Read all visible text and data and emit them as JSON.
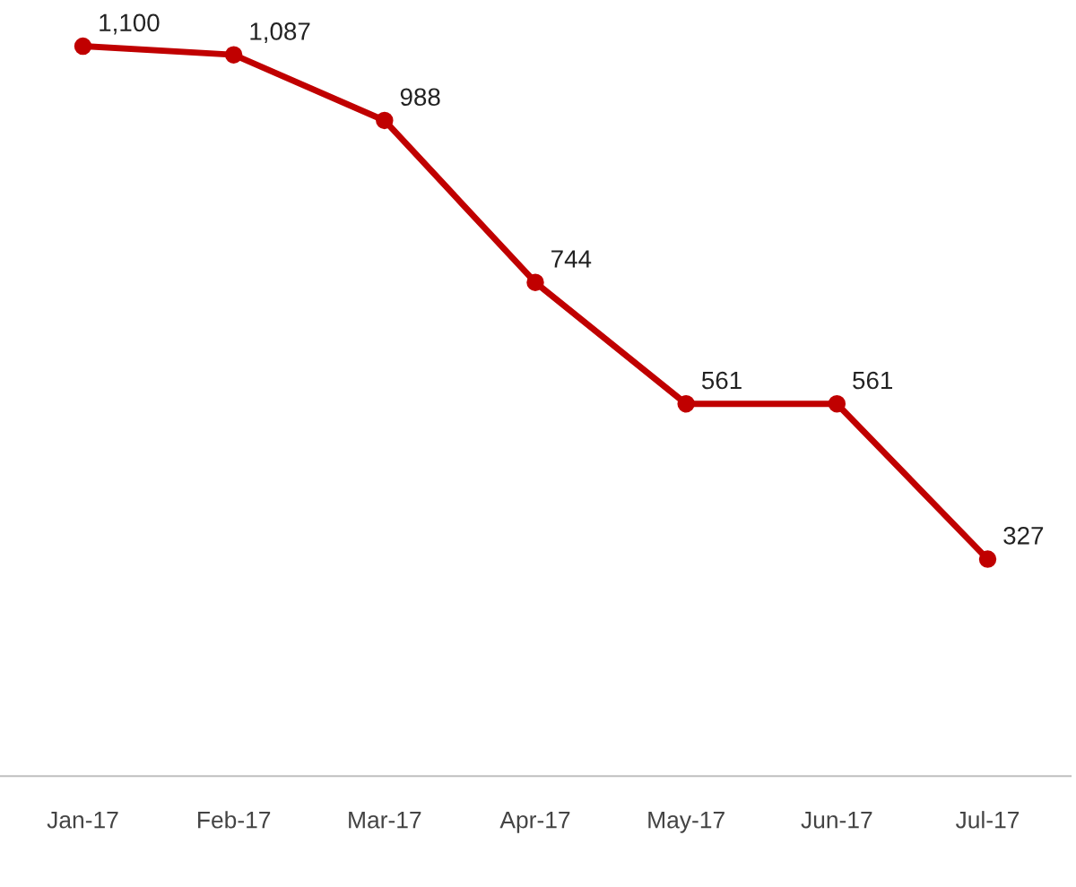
{
  "chart_data": {
    "type": "line",
    "categories": [
      "Jan-17",
      "Feb-17",
      "Mar-17",
      "Apr-17",
      "May-17",
      "Jun-17",
      "Jul-17"
    ],
    "series": [
      {
        "color": "#c00000",
        "values": [
          1100,
          1087,
          988,
          744,
          561,
          561,
          327
        ],
        "value_labels": [
          "1,100",
          "1,087",
          "988",
          "744",
          "561",
          "561",
          "327"
        ]
      }
    ],
    "tick_labels": "x",
    "grid": false,
    "legend": false,
    "marker": "circle",
    "line_style": "solid"
  }
}
